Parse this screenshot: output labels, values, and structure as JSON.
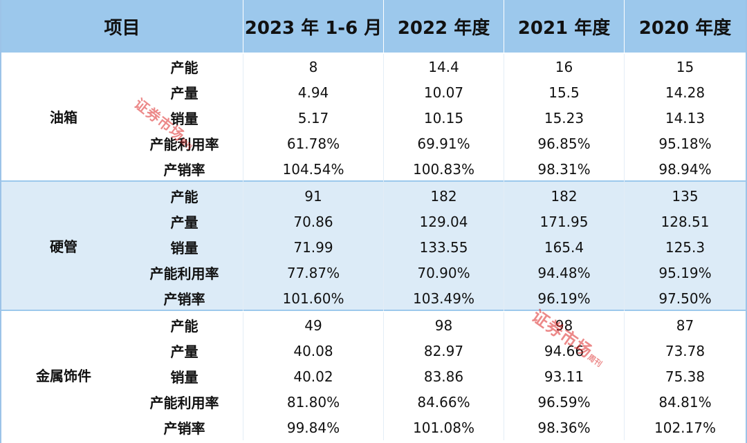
{
  "header": {
    "item": "项目",
    "col1": "2023 年 1-6 月",
    "col2": "2022 年度",
    "col3": "2021 年度",
    "col4": "2020 年度"
  },
  "groups": [
    {
      "label": "油箱",
      "rows": [
        {
          "metric": "产能",
          "c1": "8",
          "c2": "14.4",
          "c3": "16",
          "c4": "15"
        },
        {
          "metric": "产量",
          "c1": "4.94",
          "c2": "10.07",
          "c3": "15.5",
          "c4": "14.28"
        },
        {
          "metric": "销量",
          "c1": "5.17",
          "c2": "10.15",
          "c3": "15.23",
          "c4": "14.13"
        },
        {
          "metric": "产能利用率",
          "c1": "61.78%",
          "c2": "69.91%",
          "c3": "96.85%",
          "c4": "95.18%"
        },
        {
          "metric": "产销率",
          "c1": "104.54%",
          "c2": "100.83%",
          "c3": "98.31%",
          "c4": "98.94%"
        }
      ]
    },
    {
      "label": "硬管",
      "rows": [
        {
          "metric": "产能",
          "c1": "91",
          "c2": "182",
          "c3": "182",
          "c4": "135"
        },
        {
          "metric": "产量",
          "c1": "70.86",
          "c2": "129.04",
          "c3": "171.95",
          "c4": "128.51"
        },
        {
          "metric": "销量",
          "c1": "71.99",
          "c2": "133.55",
          "c3": "165.4",
          "c4": "125.3"
        },
        {
          "metric": "产能利用率",
          "c1": "77.87%",
          "c2": "70.90%",
          "c3": "94.48%",
          "c4": "95.19%"
        },
        {
          "metric": "产销率",
          "c1": "101.60%",
          "c2": "103.49%",
          "c3": "96.19%",
          "c4": "97.50%"
        }
      ]
    },
    {
      "label": "金属饰件",
      "rows": [
        {
          "metric": "产能",
          "c1": "49",
          "c2": "98",
          "c3": "98",
          "c4": "87"
        },
        {
          "metric": "产量",
          "c1": "40.08",
          "c2": "82.97",
          "c3": "94.66",
          "c4": "73.78"
        },
        {
          "metric": "销量",
          "c1": "40.02",
          "c2": "83.86",
          "c3": "93.11",
          "c4": "75.38"
        },
        {
          "metric": "产能利用率",
          "c1": "81.80%",
          "c2": "84.66%",
          "c3": "96.59%",
          "c4": "84.81%"
        },
        {
          "metric": "产销率",
          "c1": "99.84%",
          "c2": "101.08%",
          "c3": "98.36%",
          "c4": "102.17%"
        }
      ]
    }
  ],
  "stamps": {
    "big_text": "证券市场",
    "small_text": "周刊"
  },
  "colors": {
    "header_bg": "#9cc8ec",
    "alt_row_bg": "#dcebf7",
    "stamp_red": "#dc2828"
  }
}
